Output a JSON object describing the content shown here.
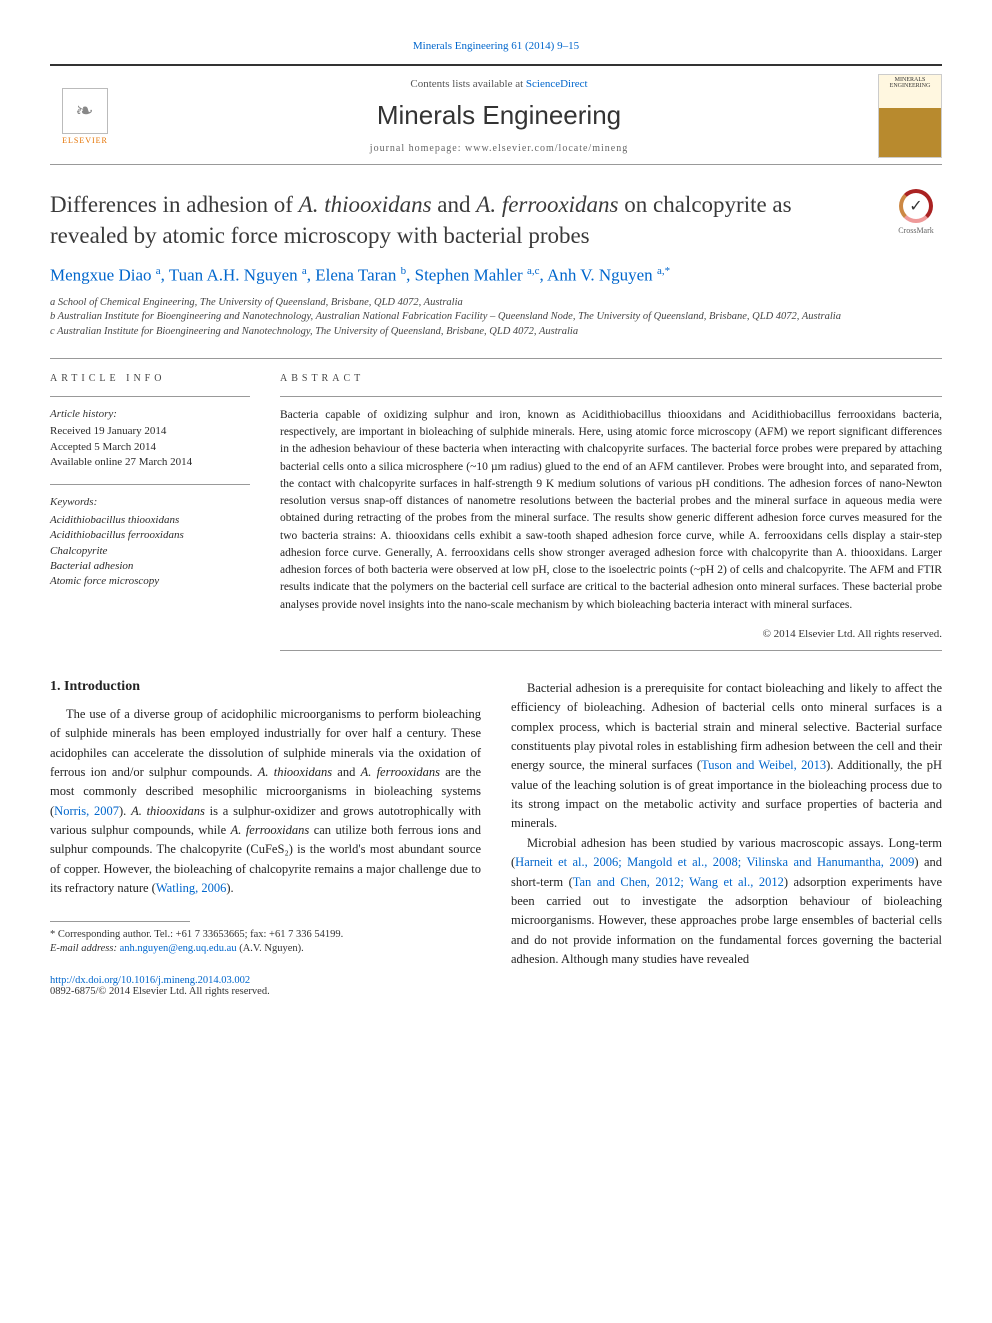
{
  "header": {
    "citation": "Minerals Engineering 61 (2014) 9–15",
    "contents_prefix": "Contents lists available at ",
    "contents_link": "ScienceDirect",
    "journal_title": "Minerals Engineering",
    "homepage": "journal homepage: www.elsevier.com/locate/mineng",
    "publisher": "ELSEVIER",
    "cover_label": "MINERALS ENGINEERING"
  },
  "title": {
    "pre": "Differences in adhesion of ",
    "sp1": "A. thiooxidans",
    "mid": " and ",
    "sp2": "A. ferrooxidans",
    "post": " on chalcopyrite as revealed by atomic force microscopy with bacterial probes"
  },
  "crossmark": "CrossMark",
  "authors_html": "Mengxue Diao <sup>a</sup>, Tuan A.H. Nguyen <sup>a</sup>, Elena Taran <sup>b</sup>, Stephen Mahler <sup>a,c</sup>, Anh V. Nguyen <sup>a,*</sup>",
  "affiliations": [
    "a School of Chemical Engineering, The University of Queensland, Brisbane, QLD 4072, Australia",
    "b Australian Institute for Bioengineering and Nanotechnology, Australian National Fabrication Facility – Queensland Node, The University of Queensland, Brisbane, QLD 4072, Australia",
    "c Australian Institute for Bioengineering and Nanotechnology, The University of Queensland, Brisbane, QLD 4072, Australia"
  ],
  "article_info": {
    "header": "ARTICLE INFO",
    "history_label": "Article history:",
    "history": [
      "Received 19 January 2014",
      "Accepted 5 March 2014",
      "Available online 27 March 2014"
    ],
    "keywords_label": "Keywords:",
    "keywords": [
      "Acidithiobacillus thiooxidans",
      "Acidithiobacillus ferrooxidans",
      "Chalcopyrite",
      "Bacterial adhesion",
      "Atomic force microscopy"
    ]
  },
  "abstract": {
    "header": "ABSTRACT",
    "text": "Bacteria capable of oxidizing sulphur and iron, known as Acidithiobacillus thiooxidans and Acidithiobacillus ferrooxidans bacteria, respectively, are important in bioleaching of sulphide minerals. Here, using atomic force microscopy (AFM) we report significant differences in the adhesion behaviour of these bacteria when interacting with chalcopyrite surfaces. The bacterial force probes were prepared by attaching bacterial cells onto a silica microsphere (~10 µm radius) glued to the end of an AFM cantilever. Probes were brought into, and separated from, the contact with chalcopyrite surfaces in half-strength 9 K medium solutions of various pH conditions. The adhesion forces of nano-Newton resolution versus snap-off distances of nanometre resolutions between the bacterial probes and the mineral surface in aqueous media were obtained during retracting of the probes from the mineral surface. The results show generic different adhesion force curves measured for the two bacteria strains: A. thiooxidans cells exhibit a saw-tooth shaped adhesion force curve, while A. ferrooxidans cells display a stair-step adhesion force curve. Generally, A. ferrooxidans cells show stronger averaged adhesion force with chalcopyrite than A. thiooxidans. Larger adhesion forces of both bacteria were observed at low pH, close to the isoelectric points (~pH 2) of cells and chalcopyrite. The AFM and FTIR results indicate that the polymers on the bacterial cell surface are critical to the bacterial adhesion onto mineral surfaces. These bacterial probe analyses provide novel insights into the nano-scale mechanism by which bioleaching bacteria interact with mineral surfaces.",
    "copyright": "© 2014 Elsevier Ltd. All rights reserved."
  },
  "section1": {
    "title": "1. Introduction",
    "col1": {
      "p1_a": "The use of a diverse group of acidophilic microorganisms to perform bioleaching of sulphide minerals has been employed industrially for over half a century. These acidophiles can accelerate the dissolution of sulphide minerals via the oxidation of ferrous ion and/or sulphur compounds. ",
      "p1_b": "A. thiooxidans",
      "p1_c": " and ",
      "p1_d": "A. ferrooxidans",
      "p1_e": " are the most commonly described mesophilic microorganisms in bioleaching systems (",
      "p1_cite1": "Norris, 2007",
      "p1_f": "). ",
      "p1_g": "A. thiooxidans",
      "p1_h": " is a sulphur-oxidizer and grows autotrophically with various sulphur compounds, while ",
      "p1_i": "A. ferrooxidans",
      "p1_j": " can utilize both ferrous ions and sulphur compounds. The chalcopyrite (CuFeS₂) is the world's most abundant source of copper. However, the bioleaching of chalcopyrite remains a major challenge due to its refractory nature (",
      "p1_cite2": "Watling, 2006",
      "p1_k": ")."
    },
    "col2": {
      "p1": "Bacterial adhesion is a prerequisite for contact bioleaching and likely to affect the efficiency of bioleaching. Adhesion of bacterial cells onto mineral surfaces is a complex process, which is bacterial strain and mineral selective. Bacterial surface constituents play pivotal roles in establishing firm adhesion between the cell and their energy source, the mineral surfaces (",
      "p1_cite1": "Tuson and Weibel, 2013",
      "p1_b": "). Additionally, the pH value of the leaching solution is of great importance in the bioleaching process due to its strong impact on the metabolic activity and surface properties of bacteria and minerals.",
      "p2_a": "Microbial adhesion has been studied by various macroscopic assays. Long-term (",
      "p2_cite1": "Harneit et al., 2006; Mangold et al., 2008; Vilinska and Hanumantha, 2009",
      "p2_b": ") and short-term (",
      "p2_cite2": "Tan and Chen, 2012; Wang et al., 2012",
      "p2_c": ") adsorption experiments have been carried out to investigate the adsorption behaviour of bioleaching microorganisms. However, these approaches probe large ensembles of bacterial cells and do not provide information on the fundamental forces governing the bacterial adhesion. Although many studies have revealed"
    }
  },
  "footnotes": {
    "corr": "* Corresponding author. Tel.: +61 7 33653665; fax: +61 7 336 54199.",
    "email_label": "E-mail address: ",
    "email": "anh.nguyen@eng.uq.edu.au",
    "email_suffix": " (A.V. Nguyen)."
  },
  "doi": {
    "url": "http://dx.doi.org/10.1016/j.mineng.2014.03.002",
    "issn": "0892-6875/© 2014 Elsevier Ltd. All rights reserved."
  }
}
